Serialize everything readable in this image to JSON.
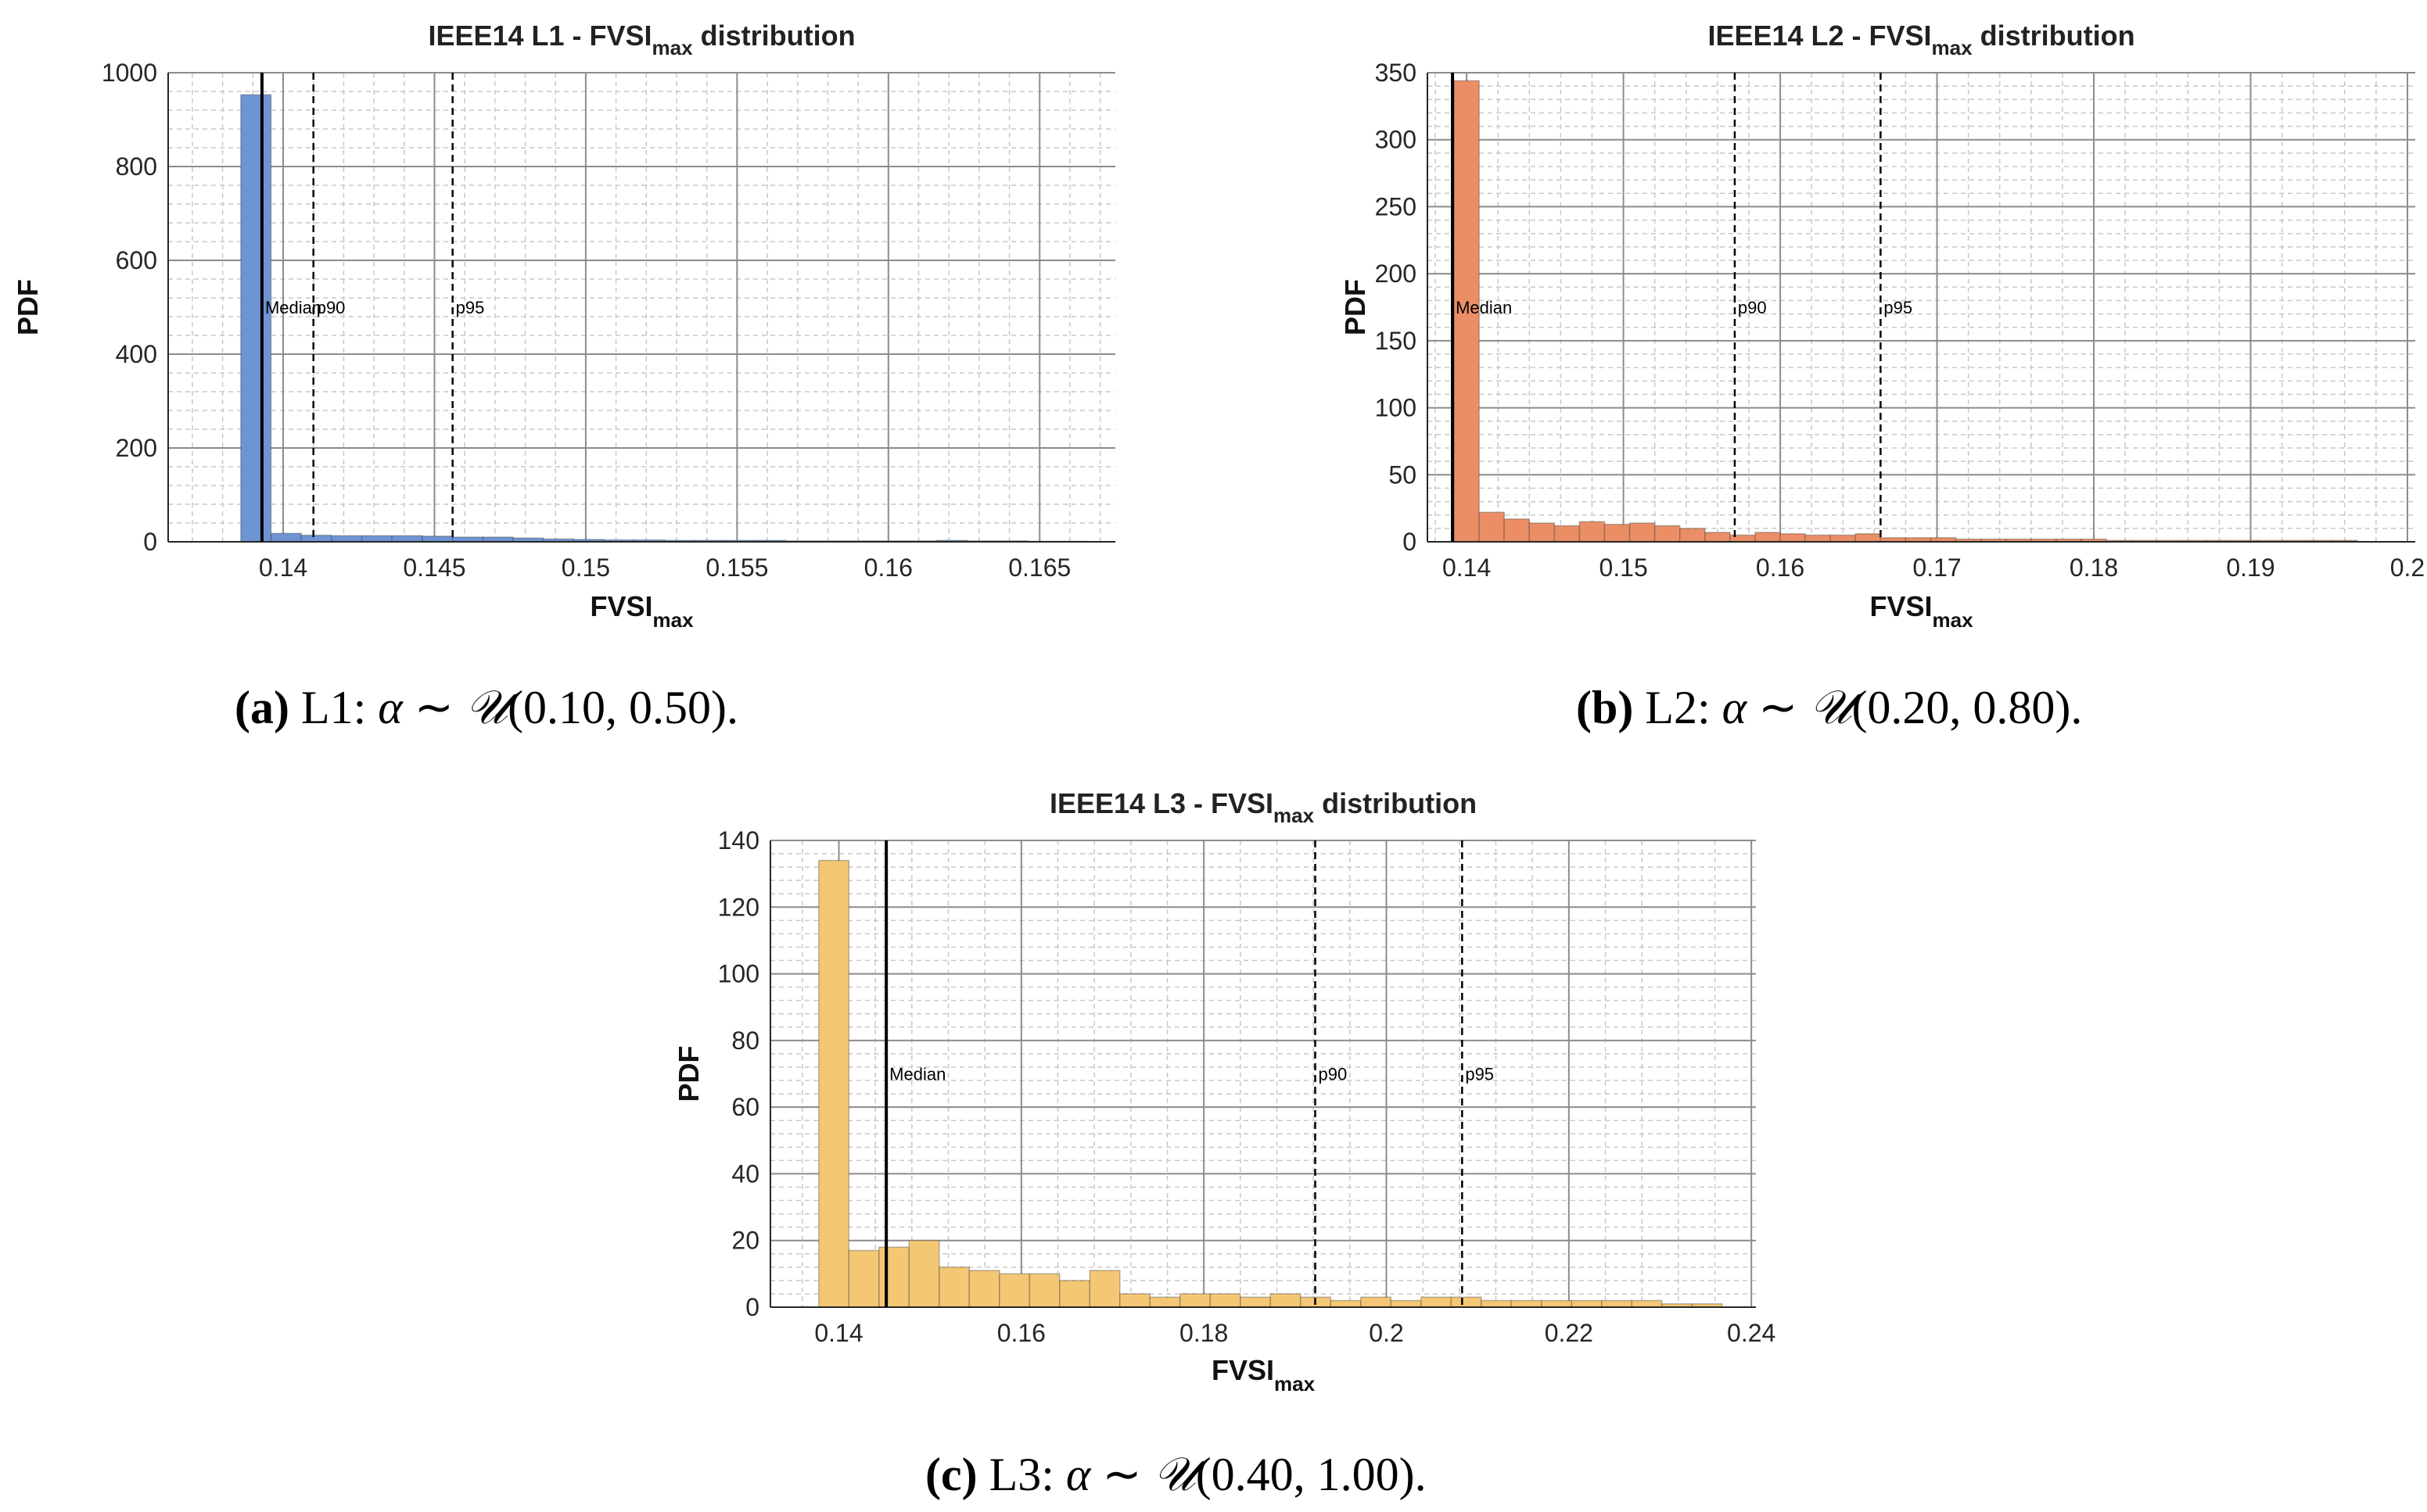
{
  "colors": {
    "l1": "#6f94d4",
    "l2": "#eb8e66",
    "l3": "#f4c774",
    "grid_major": "#8c8c8c",
    "grid_minor": "#c8c8c8"
  },
  "chart_data": [
    {
      "id": "a",
      "type": "bar",
      "title_main": "IEEE14 L1 - FVSI",
      "title_sub": "max",
      "title_tail": " distribution",
      "xlabel_main": "FVSI",
      "xlabel_sub": "max",
      "ylabel": "PDF",
      "xlim": [
        0.1362,
        0.1675
      ],
      "ylim": [
        0,
        1000
      ],
      "xticks": [
        0.14,
        0.145,
        0.15,
        0.155,
        0.16,
        0.165
      ],
      "xtick_labels": [
        "0.14",
        "0.145",
        "0.15",
        "0.155",
        "0.16",
        "0.165"
      ],
      "yticks": [
        0,
        200,
        400,
        600,
        800,
        1000
      ],
      "ytick_labels": [
        "0",
        "200",
        "400",
        "600",
        "800",
        "1000"
      ],
      "bin_start": 0.1386,
      "bin_width": 0.001,
      "values": [
        953,
        18,
        14,
        13,
        13,
        13,
        12,
        10,
        10,
        8,
        6,
        5,
        4,
        4,
        3,
        3,
        3,
        3,
        2,
        2,
        2,
        2,
        2,
        3,
        2,
        2,
        1,
        1
      ],
      "markers": [
        {
          "x": 0.1393,
          "label": "Median",
          "style": "solid"
        },
        {
          "x": 0.141,
          "label": "p90",
          "style": "dashed"
        },
        {
          "x": 0.1456,
          "label": "p95",
          "style": "dashed"
        }
      ],
      "marker_label_y": 500,
      "caption": {
        "num": "(a)",
        "text": " L1: ",
        "alpha": "α",
        "tilde": " ∼ ",
        "dist": "𝒰",
        "params": "(0.10, 0.50)."
      }
    },
    {
      "id": "b",
      "type": "bar",
      "title_main": "IEEE14 L2 - FVSI",
      "title_sub": "max",
      "title_tail": " distribution",
      "xlabel_main": "FVSI",
      "xlabel_sub": "max",
      "ylabel": "PDF",
      "xlim": [
        0.1375,
        0.2005
      ],
      "ylim": [
        0,
        350
      ],
      "xticks": [
        0.14,
        0.15,
        0.16,
        0.17,
        0.18,
        0.19,
        0.2
      ],
      "xtick_labels": [
        "0.14",
        "0.15",
        "0.16",
        "0.17",
        "0.18",
        "0.19",
        "0.2"
      ],
      "yticks": [
        0,
        50,
        100,
        150,
        200,
        250,
        300,
        350
      ],
      "ytick_labels": [
        "0",
        "50",
        "100",
        "150",
        "200",
        "250",
        "300",
        "350"
      ],
      "bin_start": 0.1392,
      "bin_width": 0.0016,
      "values": [
        344,
        22,
        17,
        14,
        12,
        15,
        13,
        14,
        12,
        10,
        7,
        5,
        7,
        6,
        5,
        5,
        6,
        3,
        3,
        3,
        2,
        2,
        2,
        2,
        2,
        2,
        1,
        1,
        1,
        1,
        1,
        1,
        1,
        1,
        1,
        1
      ],
      "markers": [
        {
          "x": 0.1391,
          "label": "Median",
          "style": "solid"
        },
        {
          "x": 0.1571,
          "label": "p90",
          "style": "dashed"
        },
        {
          "x": 0.1664,
          "label": "p95",
          "style": "dashed"
        }
      ],
      "marker_label_y": 175,
      "caption": {
        "num": "(b)",
        "text": " L2: ",
        "alpha": "α",
        "tilde": " ∼ ",
        "dist": "𝒰",
        "params": "(0.20, 0.80)."
      }
    },
    {
      "id": "c",
      "type": "bar",
      "title_main": "IEEE14 L3 - FVSI",
      "title_sub": "max",
      "title_tail": " distribution",
      "xlabel_main": "FVSI",
      "xlabel_sub": "max",
      "ylabel": "PDF",
      "xlim": [
        0.1325,
        0.2405
      ],
      "ylim": [
        0,
        140
      ],
      "xticks": [
        0.14,
        0.16,
        0.18,
        0.2,
        0.22,
        0.24
      ],
      "xtick_labels": [
        "0.14",
        "0.16",
        "0.18",
        "0.2",
        "0.22",
        "0.24"
      ],
      "yticks": [
        0,
        20,
        40,
        60,
        80,
        100,
        120,
        140
      ],
      "ytick_labels": [
        "0",
        "20",
        "40",
        "60",
        "80",
        "100",
        "120",
        "140"
      ],
      "bin_start": 0.1378,
      "bin_width": 0.0033,
      "values": [
        134,
        17,
        18,
        20,
        12,
        11,
        10,
        10,
        8,
        11,
        4,
        3,
        4,
        4,
        3,
        4,
        3,
        2,
        3,
        2,
        3,
        3,
        2,
        2,
        2,
        2,
        2,
        2,
        1,
        1
      ],
      "markers": [
        {
          "x": 0.1452,
          "label": "Median",
          "style": "solid"
        },
        {
          "x": 0.1922,
          "label": "p90",
          "style": "dashed"
        },
        {
          "x": 0.2083,
          "label": "p95",
          "style": "dashed"
        }
      ],
      "marker_label_y": 70,
      "caption": {
        "num": "(c)",
        "text": " L3: ",
        "alpha": "α",
        "tilde": " ∼ ",
        "dist": "𝒰",
        "params": "(0.40, 1.00)."
      }
    }
  ]
}
